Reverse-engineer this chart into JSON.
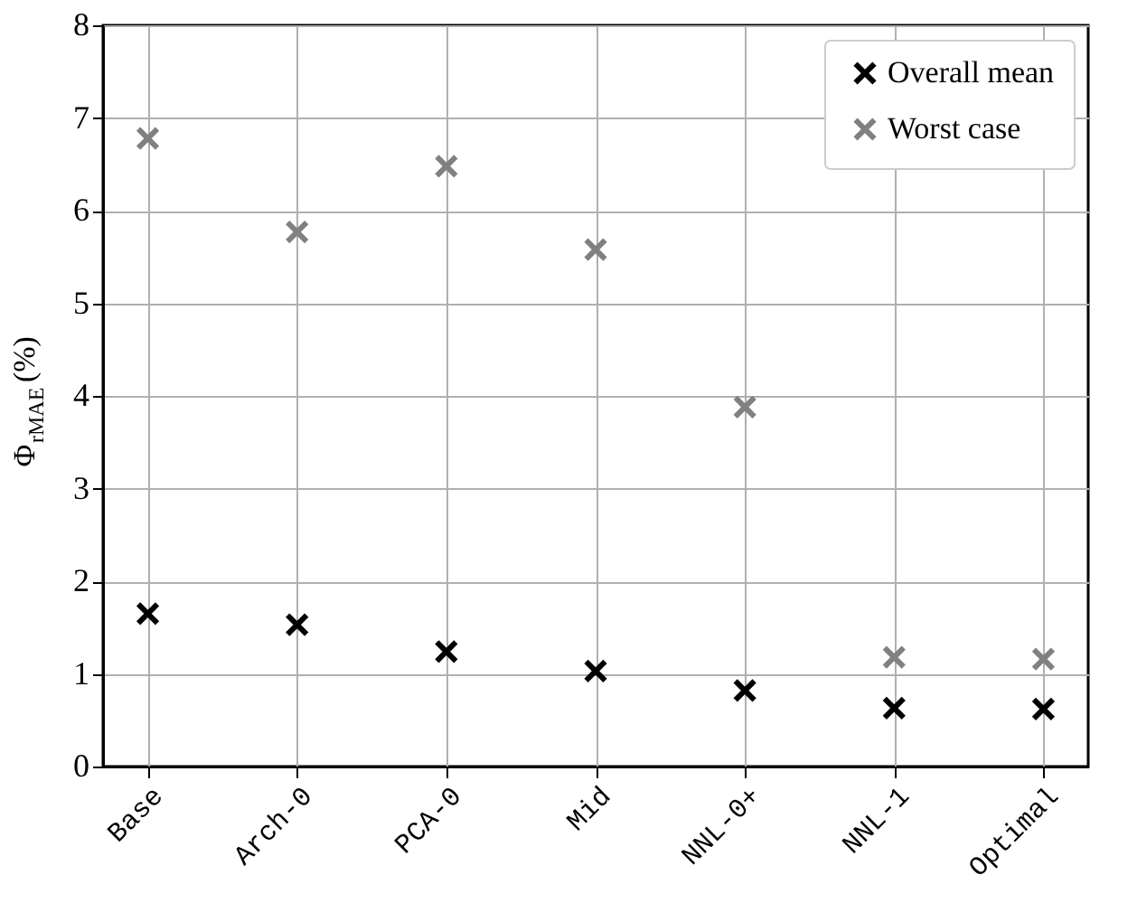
{
  "chart_data": {
    "type": "scatter",
    "ylabel": "Φ$_{rMAE}$ (%)",
    "categories": [
      "Base",
      "Arch-0",
      "PCA-0",
      "Mid",
      "NNL-0+",
      "NNL-1",
      "Optimal"
    ],
    "series": [
      {
        "name": "Overall mean",
        "color": "#000000",
        "values": [
          1.65,
          1.53,
          1.24,
          1.03,
          0.82,
          0.63,
          0.62
        ]
      },
      {
        "name": "Worst case",
        "color": "#808080",
        "values": [
          6.78,
          5.77,
          6.48,
          5.58,
          3.88,
          1.18,
          1.16
        ]
      }
    ],
    "ylim": [
      0,
      8
    ],
    "yticks": [
      0,
      1,
      2,
      3,
      4,
      5,
      6,
      7,
      8
    ],
    "grid": true,
    "legend": "top right",
    "marker": "cross"
  }
}
